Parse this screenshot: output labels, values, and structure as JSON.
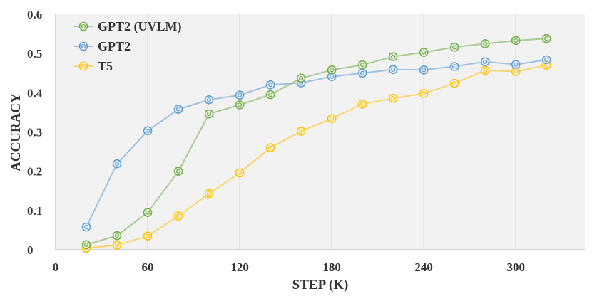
{
  "chart_data": {
    "type": "line",
    "title": "",
    "xlabel": "STEP (K)",
    "ylabel": "ACCURACY",
    "xlim": [
      0,
      345
    ],
    "ylim": [
      0,
      0.6
    ],
    "x_ticks": [
      0,
      60,
      120,
      180,
      240,
      300
    ],
    "x_tick_labels": [
      "0",
      "60",
      "120",
      "180",
      "240",
      "300"
    ],
    "y_ticks": [
      0,
      0.1,
      0.2,
      0.3,
      0.4,
      0.5,
      0.6
    ],
    "y_tick_labels": [
      "0",
      "0.1",
      "0.2",
      "0.3",
      "0.4",
      "0.5",
      "0.6"
    ],
    "grid": "vertical",
    "legend_position": "top-left",
    "x": [
      20,
      40,
      60,
      80,
      100,
      120,
      140,
      160,
      180,
      200,
      220,
      240,
      260,
      280,
      300,
      320
    ],
    "series": [
      {
        "name": "GPT2 (UVLM)",
        "color": "#70ad47",
        "values": [
          0.013,
          0.036,
          0.095,
          0.2,
          0.346,
          0.369,
          0.395,
          0.437,
          0.458,
          0.471,
          0.492,
          0.503,
          0.516,
          0.525,
          0.533,
          0.538
        ]
      },
      {
        "name": "GPT2",
        "color": "#5b9bd5",
        "values": [
          0.058,
          0.219,
          0.303,
          0.358,
          0.382,
          0.394,
          0.42,
          0.425,
          0.441,
          0.45,
          0.459,
          0.458,
          0.467,
          0.479,
          0.472,
          0.484
        ]
      },
      {
        "name": "T5",
        "color": "#ffc000",
        "values": [
          0.004,
          0.012,
          0.035,
          0.086,
          0.143,
          0.196,
          0.26,
          0.302,
          0.334,
          0.371,
          0.386,
          0.398,
          0.424,
          0.457,
          0.454,
          0.47
        ]
      }
    ]
  }
}
